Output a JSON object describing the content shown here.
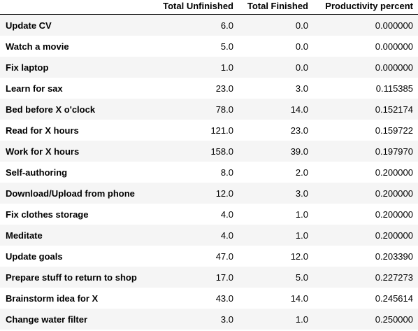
{
  "table": {
    "index_header": "",
    "columns": [
      "Total Unfinished",
      "Total Finished",
      "Productivity percent"
    ],
    "rows": [
      {
        "label": "Update CV",
        "unfinished": "6.0",
        "finished": "0.0",
        "percent": "0.000000"
      },
      {
        "label": "Watch a movie",
        "unfinished": "5.0",
        "finished": "0.0",
        "percent": "0.000000"
      },
      {
        "label": "Fix laptop",
        "unfinished": "1.0",
        "finished": "0.0",
        "percent": "0.000000"
      },
      {
        "label": "Learn for sax",
        "unfinished": "23.0",
        "finished": "3.0",
        "percent": "0.115385"
      },
      {
        "label": "Bed before X o'clock",
        "unfinished": "78.0",
        "finished": "14.0",
        "percent": "0.152174"
      },
      {
        "label": "Read for X hours",
        "unfinished": "121.0",
        "finished": "23.0",
        "percent": "0.159722"
      },
      {
        "label": "Work for X hours",
        "unfinished": "158.0",
        "finished": "39.0",
        "percent": "0.197970"
      },
      {
        "label": "Self-authoring",
        "unfinished": "8.0",
        "finished": "2.0",
        "percent": "0.200000"
      },
      {
        "label": "Download/Upload from phone",
        "unfinished": "12.0",
        "finished": "3.0",
        "percent": "0.200000"
      },
      {
        "label": "Fix clothes storage",
        "unfinished": "4.0",
        "finished": "1.0",
        "percent": "0.200000"
      },
      {
        "label": "Meditate",
        "unfinished": "4.0",
        "finished": "1.0",
        "percent": "0.200000"
      },
      {
        "label": "Update goals",
        "unfinished": "47.0",
        "finished": "12.0",
        "percent": "0.203390"
      },
      {
        "label": "Prepare stuff to return to shop",
        "unfinished": "17.0",
        "finished": "5.0",
        "percent": "0.227273"
      },
      {
        "label": "Brainstorm idea for X",
        "unfinished": "43.0",
        "finished": "14.0",
        "percent": "0.245614"
      },
      {
        "label": "Change water filter",
        "unfinished": "3.0",
        "finished": "1.0",
        "percent": "0.250000"
      }
    ]
  },
  "colors": {
    "stripe": "#f5f5f5",
    "background": "#ffffff",
    "text": "#000000"
  }
}
